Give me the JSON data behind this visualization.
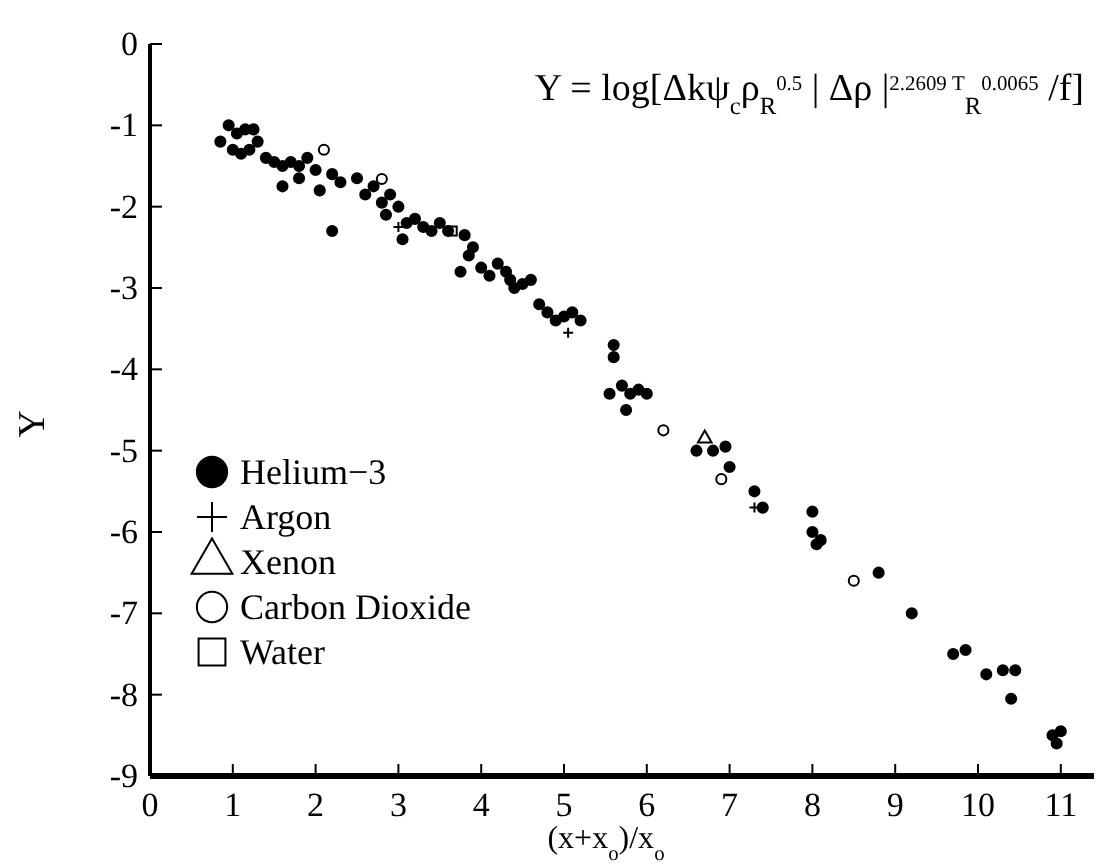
{
  "chart_data": {
    "type": "scatter",
    "title": "Y = log[Δkψ$_{c}$ρ$_{R}$$^{0.5}$ | Δρ |$^{2.2609 T}$$_{R}$$^{0.0065}$ /f]",
    "xlabel": "(x+x$_{o}$)/x$_{o}$",
    "ylabel": "Y",
    "xlim": [
      0,
      11.4
    ],
    "xticks": [
      0,
      1,
      2,
      3,
      4,
      5,
      6,
      7,
      8,
      9,
      10,
      11
    ],
    "ylim": [
      -9,
      0
    ],
    "yticks": [
      0,
      -1,
      -2,
      -3,
      -4,
      -5,
      -6,
      -7,
      -8,
      -9
    ],
    "grid": false,
    "legend": "bottom left",
    "series": [
      {
        "name": "Helium−3",
        "color": "#000000",
        "marker": "circle",
        "x": [
          0.85,
          0.95,
          1.05,
          1.15,
          1.25,
          1.0,
          1.1,
          1.2,
          1.3,
          1.4,
          1.5,
          1.6,
          1.7,
          1.8,
          1.9,
          2.0,
          1.6,
          1.8,
          2.2,
          2.3,
          2.05,
          2.5,
          2.6,
          2.7,
          2.8,
          2.9,
          2.2,
          2.85,
          3.0,
          3.1,
          3.2,
          3.3,
          3.05,
          3.4,
          3.5,
          3.6,
          3.8,
          3.85,
          4.0,
          3.9,
          3.75,
          4.1,
          4.2,
          4.3,
          4.4,
          4.35,
          4.5,
          4.6,
          4.7,
          4.8,
          4.9,
          5.0,
          5.1,
          5.2,
          5.6,
          5.6,
          5.55,
          5.7,
          5.8,
          5.9,
          5.75,
          6.0,
          6.6,
          6.8,
          6.95,
          7.0,
          7.3,
          7.4,
          8.0,
          8.0,
          8.05,
          8.1,
          8.8,
          9.2,
          9.7,
          9.85,
          10.1,
          10.3,
          10.45,
          10.4,
          10.9,
          11.0,
          10.95
        ],
        "values": [
          -1.2,
          -1.0,
          -1.1,
          -1.05,
          -1.05,
          -1.3,
          -1.35,
          -1.3,
          -1.2,
          -1.4,
          -1.45,
          -1.5,
          -1.45,
          -1.5,
          -1.4,
          -1.55,
          -1.75,
          -1.65,
          -1.6,
          -1.7,
          -1.8,
          -1.65,
          -1.85,
          -1.75,
          -1.95,
          -1.85,
          -2.3,
          -2.1,
          -2.0,
          -2.2,
          -2.15,
          -2.25,
          -2.4,
          -2.3,
          -2.2,
          -2.3,
          -2.35,
          -2.6,
          -2.75,
          -2.5,
          -2.8,
          -2.85,
          -2.7,
          -2.8,
          -3.0,
          -2.9,
          -2.95,
          -2.9,
          -3.2,
          -3.3,
          -3.4,
          -3.35,
          -3.3,
          -3.4,
          -3.7,
          -3.85,
          -4.3,
          -4.2,
          -4.3,
          -4.25,
          -4.5,
          -4.3,
          -5.0,
          -5.0,
          -4.95,
          -5.2,
          -5.5,
          -5.7,
          -5.75,
          -6.0,
          -6.15,
          -6.1,
          -6.5,
          -7.0,
          -7.5,
          -7.45,
          -7.75,
          -7.7,
          -7.7,
          -8.05,
          -8.5,
          -8.45,
          -8.6
        ]
      },
      {
        "name": "Argon",
        "color": "#000000",
        "marker": "cross",
        "x": [
          3.0,
          5.05,
          7.3
        ],
        "values": [
          -2.25,
          -3.55,
          -5.7
        ]
      },
      {
        "name": "Xenon",
        "color": "#000000",
        "marker": "triangle",
        "x": [
          6.7
        ],
        "values": [
          -4.85
        ]
      },
      {
        "name": "Carbon Dioxide",
        "color": "#ffffff",
        "marker": "circle",
        "x": [
          2.1,
          2.8,
          6.2,
          6.9,
          8.5
        ],
        "values": [
          -1.3,
          -1.66,
          -4.75,
          -5.35,
          -6.6
        ]
      },
      {
        "name": "Water",
        "color": "#000000",
        "marker": "square",
        "x": [
          3.65
        ],
        "values": [
          -2.3
        ]
      }
    ]
  }
}
